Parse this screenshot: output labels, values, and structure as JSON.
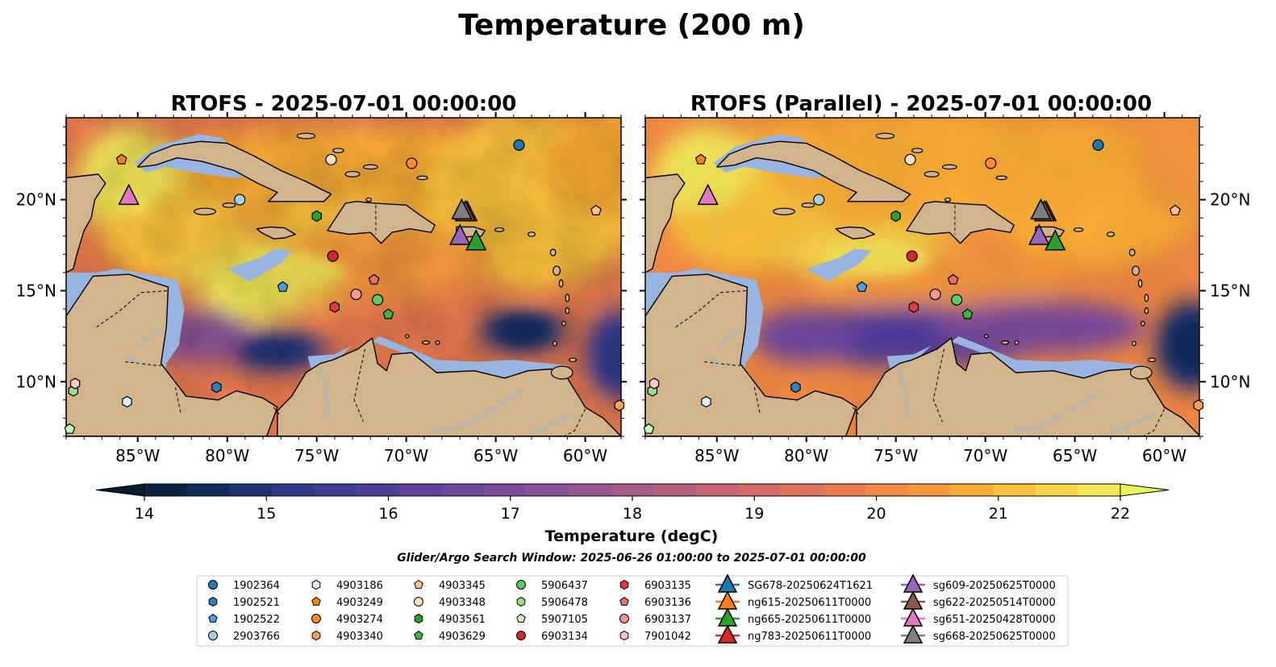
{
  "figure": {
    "suptitle": "Temperature (200 m)",
    "colorbar_label": "Temperature (degC)",
    "search_window": "Glider/Argo Search Window: 2025-06-26 01:00:00 to 2025-07-01 00:00:00"
  },
  "panels": [
    {
      "title": "RTOFS - 2025-07-01 00:00:00",
      "model": "RTOFS"
    },
    {
      "title": "RTOFS (Parallel) - 2025-07-01 00:00:00",
      "model": "RTOFS (Parallel)"
    }
  ],
  "map": {
    "lon_range": [
      -89,
      -58
    ],
    "lat_range": [
      7,
      24.5
    ],
    "lon_ticks": [
      {
        "v": -85,
        "label": "85°W"
      },
      {
        "v": -80,
        "label": "80°W"
      },
      {
        "v": -75,
        "label": "75°W"
      },
      {
        "v": -70,
        "label": "70°W"
      },
      {
        "v": -65,
        "label": "65°W"
      },
      {
        "v": -60,
        "label": "60°W"
      }
    ],
    "lat_ticks": [
      {
        "v": 20,
        "label": "20°N"
      },
      {
        "v": 15,
        "label": "15°N"
      },
      {
        "v": 10,
        "label": "10°N"
      }
    ],
    "land_color": "#d2b48c",
    "shelf_color": "#98b4e0",
    "deep_color": "#08233a"
  },
  "colorbar": {
    "vmin": 14,
    "vmax": 22,
    "ticks": [
      "14",
      "15",
      "16",
      "17",
      "18",
      "19",
      "20",
      "21",
      "22"
    ],
    "colors": [
      "#0a2440",
      "#102a5c",
      "#1e3076",
      "#2d3a8a",
      "#3e3d96",
      "#4f3d9c",
      "#5e419e",
      "#6c469e",
      "#7b4c9c",
      "#8a5298",
      "#995692",
      "#a85a8a",
      "#b85f80",
      "#c66574",
      "#d46b68",
      "#e0735c",
      "#ec7c50",
      "#f48a44",
      "#f89a3c",
      "#fbad36",
      "#fcc23a",
      "#fad548",
      "#f4e858"
    ],
    "under_color": "#061a30",
    "over_color": "#eaf55a"
  },
  "platforms": [
    {
      "id": "1902364",
      "marker": "circle",
      "color": "#1f77b4",
      "lon": -63.7,
      "lat": 23.0
    },
    {
      "id": "1902521",
      "marker": "hexagon",
      "color": "#2f7fbf",
      "lon": -80.6,
      "lat": 9.7
    },
    {
      "id": "1902522",
      "marker": "pentagon",
      "color": "#4a9fe0",
      "lon": -76.9,
      "lat": 15.2
    },
    {
      "id": "2903766",
      "marker": "circle",
      "color": "#a6cee3",
      "lon": -79.3,
      "lat": 20.0
    },
    {
      "id": "4903186",
      "marker": "hexagon",
      "color": "#ddeeff",
      "lon": -85.6,
      "lat": 8.9
    },
    {
      "id": "4903249",
      "marker": "pentagon",
      "color": "#ff7f0e",
      "lon": -85.9,
      "lat": 22.2
    },
    {
      "id": "4903274",
      "marker": "circle",
      "color": "#ff8c2a",
      "lon": -69.7,
      "lat": 22.0
    },
    {
      "id": "4903340",
      "marker": "hexagon",
      "color": "#ffa054",
      "lon": -58.1,
      "lat": 8.7
    },
    {
      "id": "4903345",
      "marker": "pentagon",
      "color": "#ffc48a",
      "lon": -59.4,
      "lat": 19.4
    },
    {
      "id": "4903348",
      "marker": "circle",
      "color": "#ffe0c0",
      "lon": -74.2,
      "lat": 22.2
    },
    {
      "id": "4903561",
      "marker": "hexagon",
      "color": "#2ca02c",
      "lon": -75.0,
      "lat": 19.1
    },
    {
      "id": "4903629",
      "marker": "pentagon",
      "color": "#3fb33f",
      "lon": -71.0,
      "lat": 13.7
    },
    {
      "id": "5906437",
      "marker": "circle",
      "color": "#5fc95f",
      "lon": -71.6,
      "lat": 14.5
    },
    {
      "id": "5906478",
      "marker": "hexagon",
      "color": "#98df8a",
      "lon": -88.6,
      "lat": 9.5
    },
    {
      "id": "5907105",
      "marker": "pentagon",
      "color": "#c8f5bc",
      "lon": -88.8,
      "lat": 7.4
    },
    {
      "id": "6903134",
      "marker": "circle",
      "color": "#d62728",
      "lon": -74.1,
      "lat": 16.9
    },
    {
      "id": "6903135",
      "marker": "hexagon",
      "color": "#e03c3c",
      "lon": -74.0,
      "lat": 14.1
    },
    {
      "id": "6903136",
      "marker": "pentagon",
      "color": "#f06a6a",
      "lon": -71.8,
      "lat": 15.6
    },
    {
      "id": "6903137",
      "marker": "circle",
      "color": "#f4999a",
      "lon": -72.8,
      "lat": 14.8
    },
    {
      "id": "7901042",
      "marker": "hexagon",
      "color": "#ffc4c4",
      "lon": -88.5,
      "lat": 9.9
    }
  ],
  "gliders": [
    {
      "id": "SG678-20250624T1621",
      "color": "#1f77b4",
      "lon": -65.9,
      "lat": 17.5,
      "show": false
    },
    {
      "id": "ng615-20250611T0000",
      "color": "#ff7f0e",
      "lon": -66.2,
      "lat": 17.6,
      "show": false
    },
    {
      "id": "ng665-20250611T0000",
      "color": "#2ca02c",
      "lon": -66.1,
      "lat": 17.6,
      "show": true
    },
    {
      "id": "ng783-20250611T0000",
      "color": "#d62728",
      "lon": -66.6,
      "lat": 19.2,
      "show": true
    },
    {
      "id": "sg609-20250625T0000",
      "color": "#9467bd",
      "lon": -67.0,
      "lat": 17.9,
      "show": true
    },
    {
      "id": "sg622-20250514T0000",
      "color": "#8c564b",
      "lon": -66.7,
      "lat": 19.2,
      "show": true
    },
    {
      "id": "sg651-20250428T0000",
      "color": "#e377c2",
      "lon": -85.5,
      "lat": 20.1,
      "show": true
    },
    {
      "id": "sg668-20250625T0000",
      "color": "#7f7f7f",
      "lon": -66.9,
      "lat": 19.3,
      "show": true
    }
  ]
}
